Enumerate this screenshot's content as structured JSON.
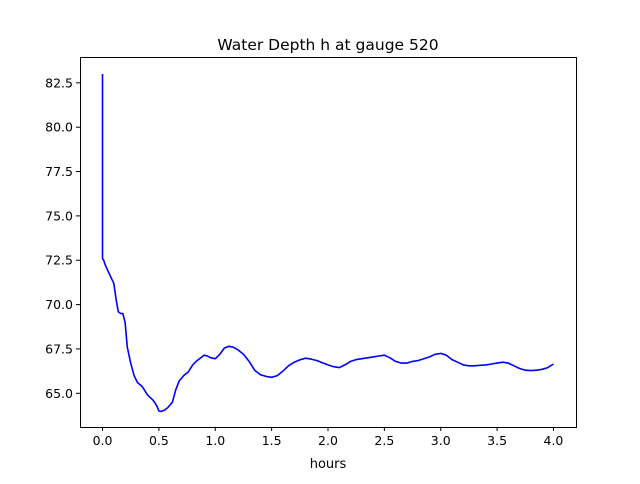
{
  "chart_data": {
    "type": "line",
    "title": "Water Depth h at gauge 520",
    "xlabel": "hours",
    "ylabel": "",
    "xlim": [
      -0.2,
      4.2
    ],
    "ylim": [
      63.1,
      83.9
    ],
    "grid": false,
    "line_color": "#0000ff",
    "x_ticks": [
      0.0,
      0.5,
      1.0,
      1.5,
      2.0,
      2.5,
      3.0,
      3.5,
      4.0
    ],
    "x_tick_labels": [
      "0.0",
      "0.5",
      "1.0",
      "1.5",
      "2.0",
      "2.5",
      "3.0",
      "3.5",
      "4.0"
    ],
    "y_ticks": [
      65.0,
      67.5,
      70.0,
      72.5,
      75.0,
      77.5,
      80.0,
      82.5
    ],
    "y_tick_labels": [
      "65.0",
      "67.5",
      "70.0",
      "72.5",
      "75.0",
      "77.5",
      "80.0",
      "82.5"
    ],
    "series": [
      {
        "x": [
          0.0,
          0.0,
          0.0,
          0.01,
          0.02,
          0.04,
          0.07,
          0.1,
          0.12,
          0.14,
          0.16,
          0.18,
          0.2,
          0.22,
          0.25,
          0.28,
          0.31,
          0.35,
          0.4,
          0.45,
          0.48,
          0.5,
          0.52,
          0.55,
          0.58,
          0.62,
          0.65,
          0.68,
          0.72,
          0.76,
          0.8,
          0.83,
          0.86,
          0.9,
          0.93,
          0.96,
          1.0,
          1.04,
          1.08,
          1.12,
          1.16,
          1.2,
          1.25,
          1.3,
          1.35,
          1.4,
          1.45,
          1.5,
          1.55,
          1.6,
          1.65,
          1.7,
          1.75,
          1.8,
          1.85,
          1.9,
          1.95,
          2.0,
          2.05,
          2.1,
          2.15,
          2.2,
          2.25,
          2.3,
          2.35,
          2.4,
          2.45,
          2.5,
          2.55,
          2.6,
          2.65,
          2.7,
          2.75,
          2.8,
          2.85,
          2.9,
          2.95,
          3.0,
          3.05,
          3.1,
          3.15,
          3.2,
          3.25,
          3.3,
          3.35,
          3.4,
          3.45,
          3.5,
          3.55,
          3.6,
          3.65,
          3.7,
          3.75,
          3.8,
          3.85,
          3.9,
          3.95,
          4.0
        ],
        "y": [
          83.0,
          81.2,
          72.6,
          72.5,
          72.3,
          72.0,
          71.6,
          71.2,
          70.3,
          69.6,
          69.5,
          69.5,
          69.0,
          67.6,
          66.7,
          66.0,
          65.6,
          65.4,
          64.9,
          64.6,
          64.3,
          64.0,
          63.98,
          64.05,
          64.2,
          64.5,
          65.2,
          65.7,
          66.0,
          66.2,
          66.6,
          66.8,
          66.95,
          67.15,
          67.1,
          67.0,
          66.95,
          67.2,
          67.55,
          67.65,
          67.6,
          67.45,
          67.2,
          66.8,
          66.3,
          66.05,
          65.95,
          65.9,
          66.0,
          66.25,
          66.55,
          66.75,
          66.88,
          66.98,
          66.93,
          66.85,
          66.72,
          66.6,
          66.5,
          66.45,
          66.6,
          66.8,
          66.9,
          66.95,
          67.0,
          67.05,
          67.1,
          67.15,
          67.0,
          66.8,
          66.7,
          66.7,
          66.8,
          66.85,
          66.95,
          67.05,
          67.2,
          67.25,
          67.15,
          66.9,
          66.75,
          66.6,
          66.55,
          66.55,
          66.58,
          66.6,
          66.65,
          66.7,
          66.75,
          66.7,
          66.55,
          66.4,
          66.3,
          66.28,
          66.3,
          66.35,
          66.45,
          66.65
        ]
      }
    ]
  }
}
